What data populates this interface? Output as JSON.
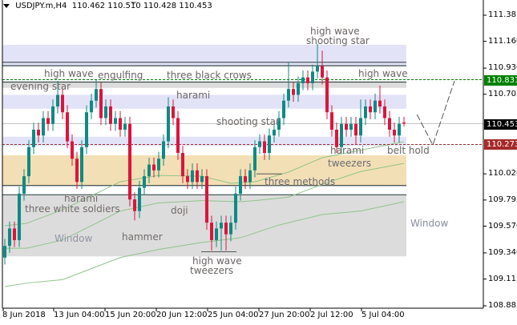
{
  "header": {
    "symbol": "USDJPY.m,H4",
    "ohlc": "110.462 110.510 110.428 110.453"
  },
  "colors": {
    "bull": "#0e8a84",
    "bear": "#dc143c",
    "ma": "#8fc48a",
    "zone_lavender": "#e3e3f7",
    "zone_gray": "#dcdcdc",
    "zone_tan": "#f3dfb5",
    "ask_line": "#008000",
    "bid_line": "#a52a2a"
  },
  "price_tags": {
    "ask": "110.831",
    "bid": "110.453",
    "level": "110.273"
  },
  "chart_data": {
    "type": "candlestick",
    "ylim": [
      108.885,
      111.385
    ],
    "y_ticks": [
      "111.385",
      "111.160",
      "110.930",
      "110.705",
      "110.020",
      "109.795",
      "109.570",
      "109.340",
      "109.115",
      "108.885"
    ],
    "x_ticks": [
      "8 Jun 2018",
      "13 Jun 04:00",
      "15 Jun 20:00",
      "20 Jun 12:00",
      "25 Jun 04:00",
      "27 Jun 20:00",
      "2 Jul 12:00",
      "5 Jul 04:00"
    ],
    "candles": [
      [
        109.3,
        109.46,
        109.24,
        109.4
      ],
      [
        109.4,
        109.61,
        109.34,
        109.55
      ],
      [
        109.55,
        109.61,
        109.39,
        109.45
      ],
      [
        109.45,
        109.91,
        109.39,
        109.85
      ],
      [
        109.85,
        110.06,
        109.79,
        110.0
      ],
      [
        110.0,
        110.31,
        109.94,
        110.25
      ],
      [
        110.25,
        110.46,
        110.19,
        110.4
      ],
      [
        110.4,
        110.46,
        110.29,
        110.35
      ],
      [
        110.35,
        110.56,
        110.29,
        110.5
      ],
      [
        110.5,
        110.56,
        110.39,
        110.45
      ],
      [
        110.45,
        110.66,
        110.39,
        110.6
      ],
      [
        110.6,
        110.82,
        110.54,
        110.7
      ],
      [
        110.7,
        110.76,
        110.49,
        110.55
      ],
      [
        110.55,
        110.61,
        110.24,
        110.3
      ],
      [
        110.3,
        110.36,
        110.09,
        110.15
      ],
      [
        110.15,
        110.21,
        109.89,
        109.95
      ],
      [
        109.95,
        110.31,
        109.89,
        110.25
      ],
      [
        110.25,
        110.61,
        110.19,
        110.55
      ],
      [
        110.55,
        110.71,
        110.49,
        110.65
      ],
      [
        110.65,
        110.83,
        110.59,
        110.75
      ],
      [
        110.75,
        110.81,
        110.44,
        110.5
      ],
      [
        110.5,
        110.66,
        110.44,
        110.6
      ],
      [
        110.6,
        110.66,
        110.39,
        110.45
      ],
      [
        110.45,
        110.56,
        110.39,
        110.5
      ],
      [
        110.5,
        110.56,
        110.34,
        110.4
      ],
      [
        110.4,
        110.51,
        110.34,
        110.45
      ],
      [
        110.45,
        110.51,
        109.74,
        109.8
      ],
      [
        109.8,
        109.86,
        109.62,
        109.7
      ],
      [
        109.7,
        109.96,
        109.64,
        109.9
      ],
      [
        109.9,
        110.06,
        109.84,
        110.0
      ],
      [
        110.0,
        110.16,
        109.94,
        110.1
      ],
      [
        110.1,
        110.16,
        109.99,
        110.05
      ],
      [
        110.05,
        110.21,
        109.99,
        110.15
      ],
      [
        110.15,
        110.36,
        110.09,
        110.3
      ],
      [
        110.3,
        110.68,
        110.24,
        110.6
      ],
      [
        110.6,
        110.66,
        110.44,
        110.5
      ],
      [
        110.5,
        110.56,
        110.14,
        110.2
      ],
      [
        110.2,
        110.26,
        109.94,
        110.0
      ],
      [
        110.0,
        110.06,
        109.89,
        109.95
      ],
      [
        109.95,
        110.11,
        109.89,
        110.05
      ],
      [
        110.05,
        110.11,
        109.89,
        109.95
      ],
      [
        109.95,
        110.06,
        109.89,
        110.0
      ],
      [
        110.0,
        110.06,
        109.54,
        109.6
      ],
      [
        109.6,
        109.66,
        109.36,
        109.45
      ],
      [
        109.45,
        109.61,
        109.39,
        109.55
      ],
      [
        109.55,
        109.66,
        109.36,
        109.6
      ],
      [
        109.6,
        109.66,
        109.36,
        109.5
      ],
      [
        109.5,
        109.66,
        109.44,
        109.6
      ],
      [
        109.6,
        109.91,
        109.54,
        109.85
      ],
      [
        109.85,
        110.06,
        109.79,
        110.0
      ],
      [
        110.0,
        110.06,
        109.89,
        109.95
      ],
      [
        109.95,
        110.11,
        109.89,
        110.05
      ],
      [
        110.05,
        110.31,
        109.99,
        110.25
      ],
      [
        110.25,
        110.36,
        110.19,
        110.3
      ],
      [
        110.3,
        110.36,
        110.14,
        110.2
      ],
      [
        110.2,
        110.41,
        110.14,
        110.35
      ],
      [
        110.35,
        110.46,
        110.29,
        110.4
      ],
      [
        110.4,
        110.56,
        110.34,
        110.5
      ],
      [
        110.5,
        110.71,
        110.44,
        110.65
      ],
      [
        110.65,
        110.98,
        110.59,
        110.75
      ],
      [
        110.75,
        110.81,
        110.64,
        110.7
      ],
      [
        110.7,
        110.86,
        110.64,
        110.8
      ],
      [
        110.8,
        110.91,
        110.74,
        110.85
      ],
      [
        110.85,
        110.91,
        110.74,
        110.8
      ],
      [
        110.8,
        110.96,
        110.74,
        110.9
      ],
      [
        110.9,
        111.14,
        110.84,
        110.95
      ],
      [
        110.95,
        111.08,
        110.79,
        110.85
      ],
      [
        110.85,
        110.91,
        110.49,
        110.55
      ],
      [
        110.55,
        110.61,
        110.34,
        110.4
      ],
      [
        110.4,
        110.46,
        110.2,
        110.25
      ],
      [
        110.25,
        110.51,
        110.2,
        110.45
      ],
      [
        110.45,
        110.51,
        110.34,
        110.4
      ],
      [
        110.4,
        110.51,
        110.34,
        110.45
      ],
      [
        110.45,
        110.51,
        110.27,
        110.35
      ],
      [
        110.35,
        110.66,
        110.29,
        110.5
      ],
      [
        110.5,
        110.66,
        110.44,
        110.6
      ],
      [
        110.6,
        110.66,
        110.49,
        110.55
      ],
      [
        110.55,
        110.71,
        110.49,
        110.65
      ],
      [
        110.65,
        110.78,
        110.54,
        110.6
      ],
      [
        110.6,
        110.66,
        110.44,
        110.5
      ],
      [
        110.5,
        110.56,
        110.34,
        110.4
      ],
      [
        110.4,
        110.46,
        110.29,
        110.35
      ],
      [
        110.35,
        110.51,
        110.29,
        110.45
      ],
      [
        110.462,
        110.51,
        110.428,
        110.453
      ]
    ],
    "moving_averages": [
      [
        [
          0,
          109.574
        ],
        [
          4.5,
          109.594
        ],
        [
          12,
          109.711
        ],
        [
          24,
          109.952
        ],
        [
          32,
          110.007
        ],
        [
          41,
          110.0
        ],
        [
          47,
          109.939
        ],
        [
          52,
          109.952
        ],
        [
          59,
          110.035
        ],
        [
          66,
          110.159
        ],
        [
          83,
          110.297
        ]
      ],
      [
        [
          0,
          109.38
        ],
        [
          4.5,
          109.38
        ],
        [
          12,
          109.45
        ],
        [
          24,
          109.7
        ],
        [
          32,
          109.77
        ],
        [
          41,
          109.79
        ],
        [
          49,
          109.78
        ],
        [
          52,
          109.79
        ],
        [
          59,
          109.82
        ],
        [
          66,
          109.93
        ],
        [
          74,
          110.04
        ],
        [
          83,
          110.11
        ]
      ],
      [
        [
          0,
          109.05
        ],
        [
          4.5,
          109.08
        ],
        [
          12,
          109.11
        ],
        [
          24,
          109.3
        ],
        [
          32,
          109.37
        ],
        [
          41,
          109.43
        ],
        [
          49,
          109.47
        ],
        [
          57,
          109.58
        ],
        [
          66,
          109.67
        ],
        [
          74,
          109.7
        ],
        [
          83,
          109.78
        ]
      ]
    ],
    "zones": [
      {
        "kind": "lavender",
        "from": 110.95,
        "to": 111.13
      },
      {
        "kind": "gray",
        "from": 110.76,
        "to": 110.81
      },
      {
        "kind": "lavender",
        "from": 110.58,
        "to": 110.7
      },
      {
        "kind": "lavender",
        "from": 110.26,
        "to": 110.34
      },
      {
        "kind": "tan",
        "from": 109.92,
        "to": 110.18
      },
      {
        "kind": "gray",
        "from": 109.31,
        "to": 109.84
      }
    ],
    "level_lines": [
      110.98,
      110.95,
      110.81,
      109.92,
      109.84
    ],
    "horizontal_lines": {
      "ask": 110.831,
      "bid": 110.453,
      "level": 110.273
    },
    "projection": [
      [
        85.7,
        110.531
      ],
      [
        89,
        110.269
      ],
      [
        93.5,
        110.82
      ]
    ],
    "annotations": [
      "high wave",
      "engulfing",
      "three black crows",
      "evening star",
      "harami",
      "shooting star",
      "high wave",
      "shooting star",
      "high wave",
      "harami",
      "tweezers",
      "belt hold",
      "three methods",
      "harami",
      "three white soldiers",
      "Window",
      "doji",
      "hammer",
      "high wave",
      "tweezers",
      "Window"
    ]
  }
}
